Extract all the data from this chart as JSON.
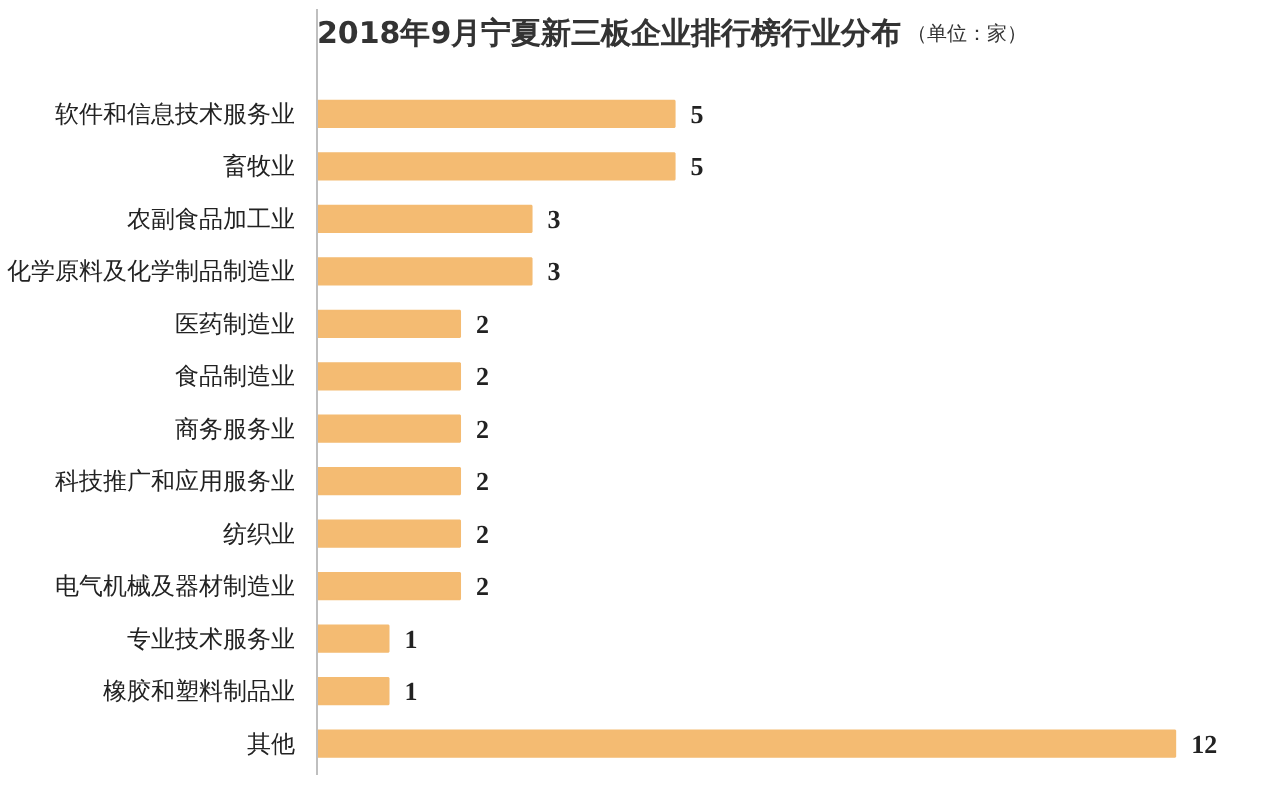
{
  "chart_data": {
    "type": "bar",
    "orientation": "horizontal",
    "title": "2018年9月宁夏新三板企业排行榜行业分布",
    "subtitle": "（单位：家）",
    "categories": [
      "软件和信息技术服务业",
      "畜牧业",
      "农副食品加工业",
      "化学原料及化学制品制造业",
      "医药制造业",
      "食品制造业",
      "商务服务业",
      "科技推广和应用服务业",
      "纺织业",
      "电气机械及器材制造业",
      "专业技术服务业",
      "橡胶和塑料制品业",
      "其他"
    ],
    "values": [
      5,
      5,
      3,
      3,
      2,
      2,
      2,
      2,
      2,
      2,
      1,
      1,
      12
    ],
    "color": "#f4bb72",
    "data_labels": true,
    "grid": false
  }
}
